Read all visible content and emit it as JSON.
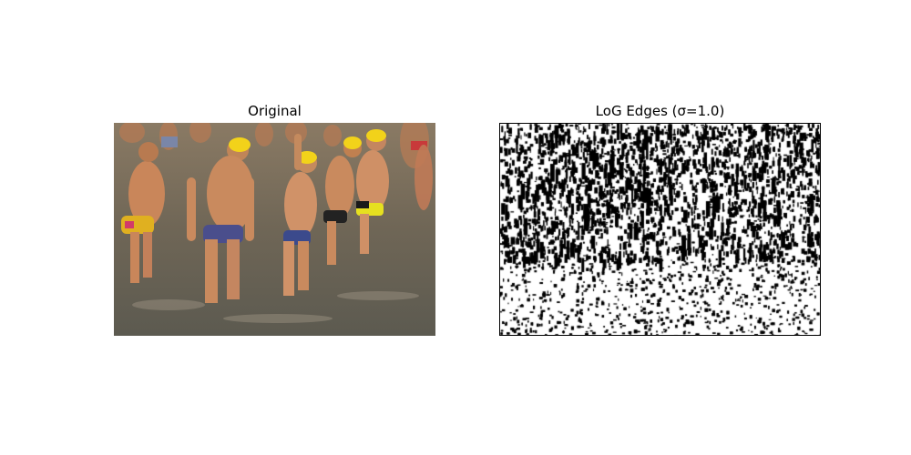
{
  "figure": {
    "panels": [
      {
        "title": "Original",
        "content": "photo of swimmers in yellow caps wading through shallow water"
      },
      {
        "title": "LoG Edges (σ=1.0)",
        "content": "black edge map on white background"
      }
    ]
  },
  "colors": {
    "background": "#ffffff",
    "water": "#6f6656",
    "skin": "#c98a5e",
    "cap_yellow": "#f2d21a",
    "edge": "#000000"
  }
}
